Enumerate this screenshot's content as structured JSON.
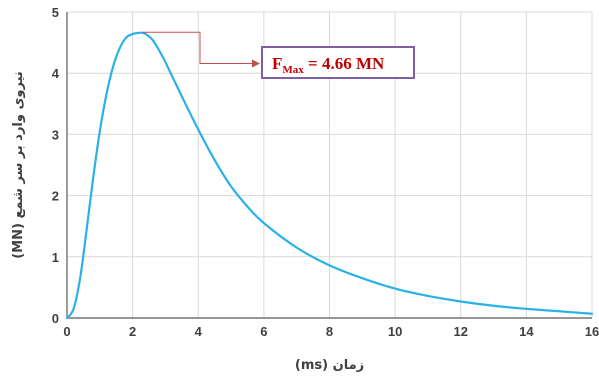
{
  "chart_data": {
    "type": "line",
    "title": "",
    "xlabel": "زمان (ms)",
    "ylabel": "نیروی وارد بر سر شمع (MN)",
    "xlim": [
      0,
      16
    ],
    "ylim": [
      0,
      5
    ],
    "x_ticks": [
      0,
      2,
      4,
      6,
      8,
      10,
      12,
      14,
      16
    ],
    "y_ticks": [
      0,
      1,
      2,
      3,
      4,
      5
    ],
    "grid": true,
    "legend": "none",
    "series": [
      {
        "color": "#29b1e8",
        "x": [
          0,
          0.2,
          0.4,
          0.6,
          0.8,
          1.0,
          1.2,
          1.4,
          1.6,
          1.8,
          2.0,
          2.2,
          2.3,
          2.4,
          2.6,
          2.8,
          3.0,
          3.5,
          4.0,
          4.5,
          5.0,
          5.5,
          6.0,
          7.0,
          8.0,
          9.0,
          10.0,
          11.0,
          12.0,
          13.0,
          14.0,
          15.0,
          16.0
        ],
        "y": [
          0,
          0.15,
          0.65,
          1.45,
          2.3,
          3.05,
          3.65,
          4.1,
          4.4,
          4.58,
          4.64,
          4.66,
          4.66,
          4.64,
          4.55,
          4.38,
          4.18,
          3.62,
          3.08,
          2.58,
          2.15,
          1.82,
          1.55,
          1.15,
          0.86,
          0.65,
          0.48,
          0.36,
          0.27,
          0.2,
          0.15,
          0.11,
          0.07
        ]
      }
    ],
    "annotations": [
      {
        "label_main": "F",
        "label_sub": "Max",
        "label_rest": " = 4.66 MN",
        "x": 2.3,
        "y": 4.66
      }
    ]
  }
}
